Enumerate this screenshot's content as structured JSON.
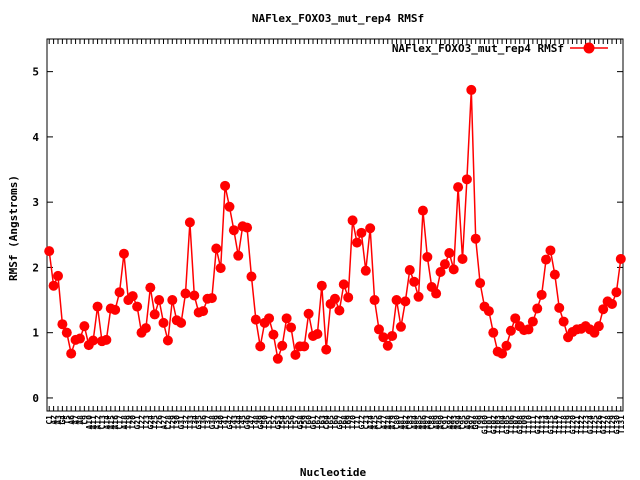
{
  "chart_data": {
    "type": "line",
    "title": "NAFlex_FOXO3_mut_rep4 RMSf",
    "xlabel": "Nucleotide",
    "ylabel": "RMSf (Angstroms)",
    "ylim": [
      -0.2,
      5.5
    ],
    "yticks": [
      0,
      1,
      2,
      3,
      4,
      5
    ],
    "grid": false,
    "legend_position": "top-right",
    "color": "#ff0000",
    "series": [
      {
        "name": "NAFlex_FOXO3_mut_rep4 RMSf",
        "values": [
          2.25,
          1.72,
          1.87,
          1.13,
          1.0,
          0.68,
          0.89,
          0.91,
          1.1,
          0.81,
          0.88,
          1.4,
          0.87,
          0.89,
          1.37,
          1.35,
          1.62,
          2.21,
          1.5,
          1.56,
          1.4,
          1.0,
          1.07,
          1.69,
          1.28,
          1.5,
          1.15,
          0.88,
          1.5,
          1.19,
          1.15,
          1.6,
          2.69,
          1.57,
          1.31,
          1.33,
          1.52,
          1.53,
          2.29,
          1.99,
          3.25,
          2.93,
          2.57,
          2.18,
          2.63,
          2.61,
          1.86,
          1.2,
          0.79,
          1.15,
          1.22,
          0.97,
          0.6,
          0.8,
          1.22,
          1.08,
          0.66,
          0.79,
          0.79,
          1.29,
          0.95,
          0.98,
          1.72,
          0.74,
          1.44,
          1.52,
          1.34,
          1.74,
          1.54,
          2.72,
          2.38,
          2.53,
          1.95,
          2.6,
          1.5,
          1.05,
          0.93,
          0.8,
          0.95,
          1.5,
          1.09,
          1.48,
          1.96,
          1.78,
          1.55,
          2.87,
          2.16,
          1.7,
          1.6,
          1.93,
          2.05,
          2.22,
          1.97,
          3.23,
          2.13,
          3.35,
          4.72,
          2.44,
          1.76,
          1.4,
          1.33,
          1.0,
          0.71,
          0.68,
          0.8,
          1.03,
          1.22,
          1.1,
          1.04,
          1.05,
          1.17,
          1.37,
          1.58,
          2.12,
          2.26,
          1.89,
          1.38,
          1.17,
          0.93,
          1.01,
          1.05,
          1.06,
          1.1,
          1.05,
          1.0,
          1.1,
          1.36,
          1.48,
          1.44,
          1.62,
          2.13
        ]
      }
    ],
    "xtick_labels": [
      "C1",
      "A2",
      "A3",
      "G4",
      "T5",
      "A6",
      "A7",
      "A8",
      "C9",
      "A10",
      "A11",
      "A12",
      "C13",
      "A14",
      "A15",
      "A16",
      "C17",
      "A18",
      "T19",
      "T20",
      "G21",
      "T22",
      "T23",
      "G24",
      "T25",
      "T26",
      "A27",
      "C28",
      "T29",
      "T30",
      "G31",
      "T32",
      "T33",
      "T34",
      "G35",
      "T36",
      "T37",
      "G38",
      "C39",
      "T40",
      "T41",
      "G42",
      "T43",
      "T44",
      "T45",
      "G46",
      "T47",
      "T48",
      "G49",
      "T50",
      "T51",
      "T52",
      "G53",
      "T54",
      "T55",
      "T56",
      "T57",
      "G58",
      "T59",
      "T60",
      "G61",
      "T62",
      "T63",
      "C64",
      "T65",
      "T66",
      "G67",
      "T68",
      "T69",
      "T70",
      "T71",
      "G72",
      "C73",
      "A74",
      "A75",
      "C76",
      "A77",
      "A78",
      "A79",
      "C80",
      "A81",
      "A82",
      "C83",
      "A84",
      "A85",
      "A86",
      "A87",
      "C88",
      "A89",
      "A90",
      "C91",
      "A92",
      "A93",
      "A94",
      "C95",
      "A96",
      "A97",
      "G98",
      "T99",
      "G100",
      "T101",
      "G102",
      "T103",
      "T104",
      "G105",
      "T106",
      "T107",
      "G108",
      "T109",
      "T110",
      "T111",
      "G112",
      "T113",
      "T114",
      "G115",
      "T116",
      "T117",
      "T118",
      "T119",
      "G120",
      "T121",
      "T122",
      "T123",
      "G124",
      "T125",
      "T126",
      "G127",
      "T128",
      "T129",
      "G130",
      "T131"
    ]
  }
}
